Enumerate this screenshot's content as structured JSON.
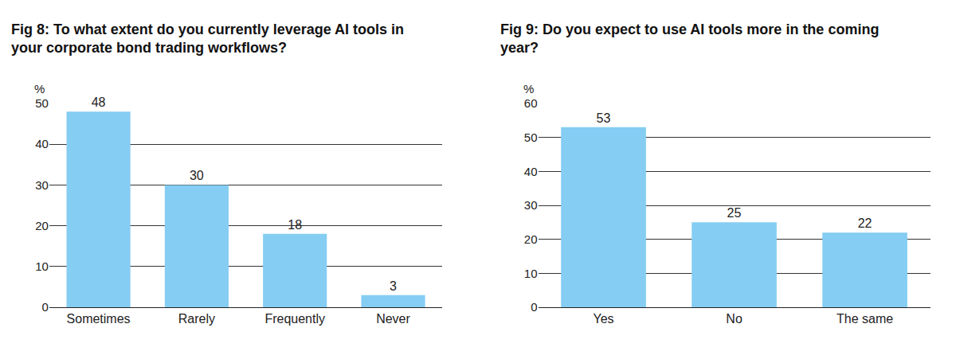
{
  "chart_data": [
    {
      "type": "bar",
      "title": "Fig 8: To what extent do you currently leverage AI tools in your corporate bond trading workflows?",
      "ylabel": "%",
      "categories": [
        "Sometimes",
        "Rarely",
        "Frequently",
        "Never"
      ],
      "values": [
        48,
        30,
        18,
        3
      ],
      "color": "#85cdf2",
      "ylim": [
        0,
        50
      ],
      "yticks": [
        0,
        10,
        20,
        30,
        40,
        50
      ],
      "grid": true,
      "data_labels": true
    },
    {
      "type": "bar",
      "title": "Fig 9: Do you expect to use AI tools more in the coming year?",
      "ylabel": "%",
      "categories": [
        "Yes",
        "No",
        "The same"
      ],
      "values": [
        53,
        25,
        22
      ],
      "color": "#85cdf2",
      "ylim": [
        0,
        60
      ],
      "yticks": [
        0,
        10,
        20,
        30,
        40,
        50,
        60
      ],
      "grid": true,
      "data_labels": true
    }
  ]
}
